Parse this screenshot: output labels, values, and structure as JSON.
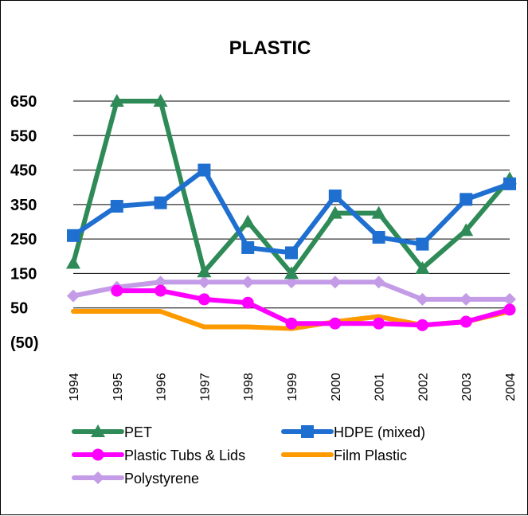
{
  "chart_data": {
    "type": "line",
    "title": "PLASTIC",
    "xlabel": "",
    "ylabel": "",
    "categories": [
      "1994",
      "1995",
      "1996",
      "1997",
      "1998",
      "1999",
      "2000",
      "2001",
      "2002",
      "2003",
      "2004"
    ],
    "y_ticks": [
      650,
      550,
      450,
      350,
      250,
      150,
      50,
      -50
    ],
    "y_tick_labels": [
      "650",
      "550",
      "450",
      "350",
      "250",
      "150",
      "50",
      "(50)"
    ],
    "ylim": [
      -50,
      650
    ],
    "grid": true,
    "legend_position": "bottom",
    "series": [
      {
        "name": "PET",
        "color": "#2e8b57",
        "marker": "triangle",
        "values": [
          180,
          650,
          650,
          155,
          300,
          150,
          325,
          325,
          165,
          275,
          425
        ]
      },
      {
        "name": "HDPE (mixed)",
        "color": "#1f6fd1",
        "marker": "square",
        "values": [
          260,
          345,
          355,
          450,
          225,
          210,
          375,
          255,
          235,
          365,
          410
        ]
      },
      {
        "name": "Plastic Tubs & Lids",
        "color": "#ff00ff",
        "marker": "circle",
        "values": [
          null,
          100,
          100,
          75,
          65,
          5,
          5,
          5,
          0,
          10,
          45
        ]
      },
      {
        "name": "Film Plastic",
        "color": "#ff9900",
        "marker": "none",
        "values": [
          40,
          40,
          40,
          -5,
          -5,
          -10,
          10,
          25,
          0,
          10,
          40
        ]
      },
      {
        "name": "Polystyrene",
        "color": "#c49be6",
        "marker": "diamond",
        "values": [
          85,
          110,
          125,
          125,
          125,
          125,
          125,
          125,
          75,
          75,
          75
        ]
      }
    ]
  }
}
